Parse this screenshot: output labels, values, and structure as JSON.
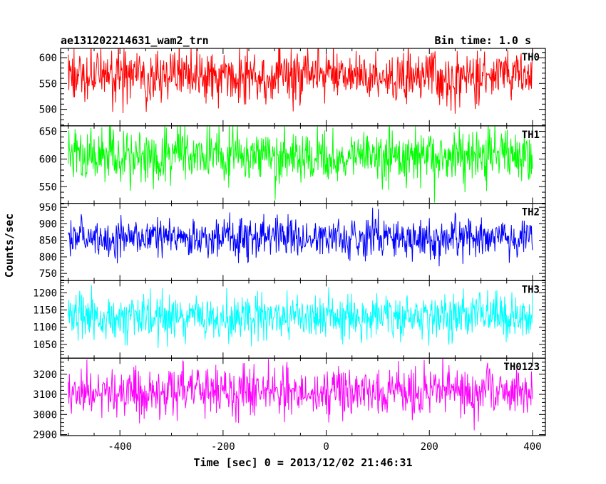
{
  "chart_data": {
    "type": "line",
    "title_left": "ae131202214631_wam2_trn",
    "title_right": "Bin time: 1.0 s",
    "xlabel": "Time [sec] 0 = 2013/12/02 21:46:31",
    "ylabel": "Counts/sec",
    "xlim": [
      -515,
      425
    ],
    "x_ticks": [
      -400,
      -200,
      0,
      200,
      400
    ],
    "x_range": [
      -500,
      400
    ],
    "bin_time": 1.0,
    "panels": [
      {
        "name": "TH0",
        "color": "#ff0000",
        "ylim": [
          468,
          618
        ],
        "y_ticks": [
          500,
          550,
          600
        ],
        "mean": 565,
        "spread": 25
      },
      {
        "name": "TH1",
        "color": "#00ff00",
        "ylim": [
          520,
          660
        ],
        "y_ticks": [
          550,
          600,
          650
        ],
        "mean": 605,
        "spread": 25
      },
      {
        "name": "TH2",
        "color": "#0000ff",
        "ylim": [
          728,
          962
        ],
        "y_ticks": [
          750,
          800,
          850,
          900,
          950
        ],
        "mean": 860,
        "spread": 30
      },
      {
        "name": "TH3",
        "color": "#00ffff",
        "ylim": [
          1010,
          1235
        ],
        "y_ticks": [
          1050,
          1100,
          1150,
          1200
        ],
        "mean": 1130,
        "spread": 35
      },
      {
        "name": "TH0123",
        "color": "#ff00ff",
        "ylim": [
          2895,
          3280
        ],
        "y_ticks": [
          2900,
          3000,
          3100,
          3200
        ],
        "mean": 3110,
        "spread": 60
      }
    ]
  }
}
